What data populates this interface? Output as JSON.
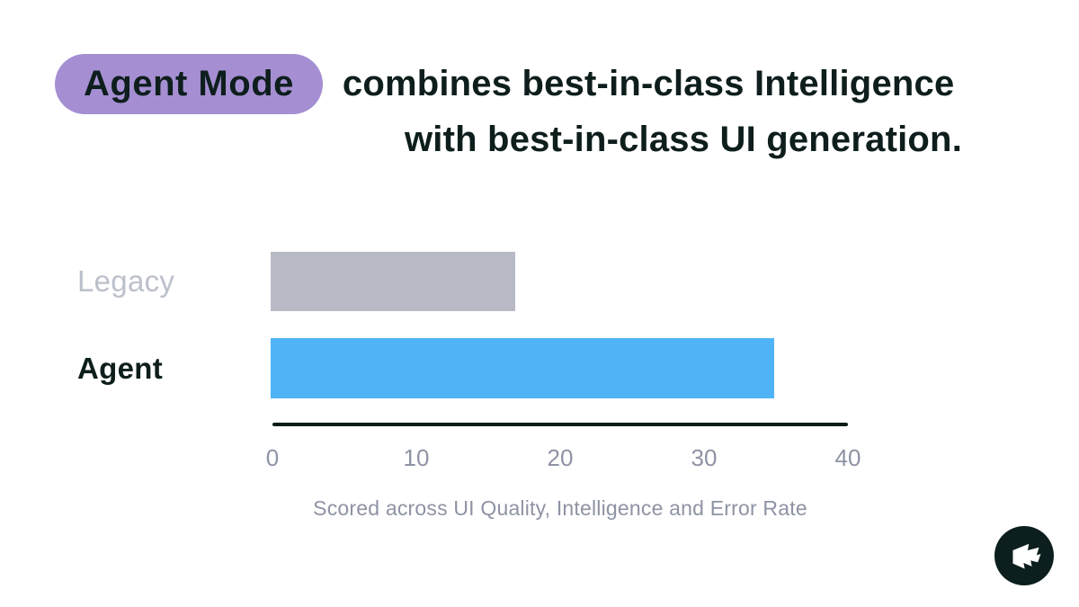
{
  "title": {
    "badge": "Agent Mode",
    "line1_rest": "combines best-in-class Intelligence",
    "line2": "with best-in-class UI generation."
  },
  "chart_data": {
    "type": "bar",
    "orientation": "horizontal",
    "categories": [
      "Legacy",
      "Agent"
    ],
    "values": [
      17,
      35
    ],
    "xlim": [
      0,
      40
    ],
    "xticks": [
      "0",
      "10",
      "20",
      "30",
      "40"
    ],
    "caption": "Scored across UI Quality, Intelligence and Error Rate",
    "bar_colors": [
      "#b8bac5",
      "#4fb3f6"
    ],
    "category_label_colors": [
      "#bcc0cb",
      "#0e1e1d"
    ],
    "axis_line_color": "#0d1c1b",
    "tick_label_color": "#8e93a4",
    "grid": false,
    "legend": false
  },
  "colors": {
    "background": "#ffffff",
    "badge_background": "#a58fd2",
    "title_text": "#0e1e1d",
    "logo_circle": "#0c1f1e",
    "logo_glyph": "#ffffff"
  },
  "logo": {
    "name": "magicpatterns-flag-logo"
  }
}
